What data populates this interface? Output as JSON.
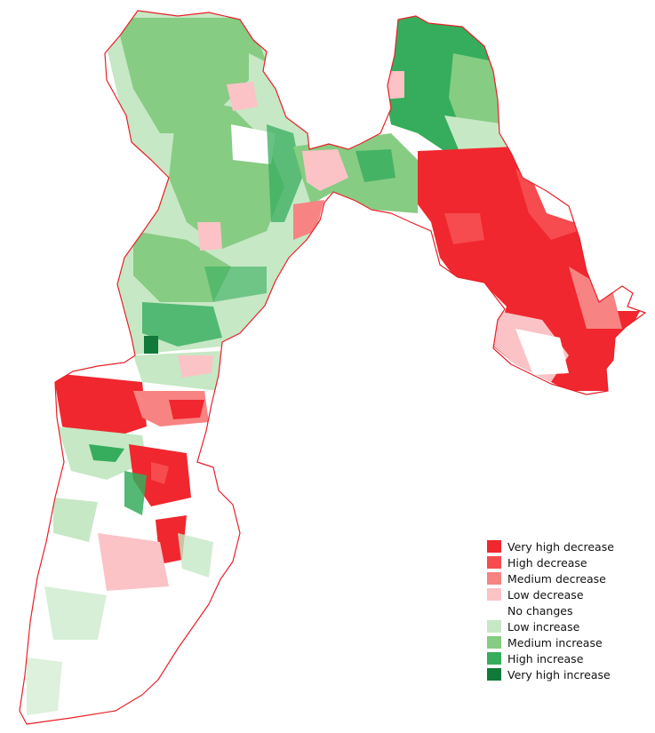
{
  "map": {
    "boundary_color": "#e8202a",
    "background_color": "#ffffff",
    "classes": [
      {
        "key": "very-high-decrease",
        "color": "#f0272e"
      },
      {
        "key": "high-decrease",
        "color": "#f64b4f"
      },
      {
        "key": "medium-decrease",
        "color": "#f78383"
      },
      {
        "key": "low-decrease",
        "color": "#fbc3c6"
      },
      {
        "key": "no-changes",
        "color": "#ffffff"
      },
      {
        "key": "low-increase",
        "color": "#c6e8c5"
      },
      {
        "key": "medium-increase",
        "color": "#86cc83"
      },
      {
        "key": "high-increase",
        "color": "#35ad5c"
      },
      {
        "key": "very-high-increase",
        "color": "#117a3a"
      }
    ]
  },
  "legend": {
    "items": [
      {
        "label": "Very high decrease",
        "color": "#f0272e"
      },
      {
        "label": "High decrease",
        "color": "#f64b4f"
      },
      {
        "label": "Medium decrease",
        "color": "#f78383"
      },
      {
        "label": "Low decrease",
        "color": "#fbc3c6"
      },
      {
        "label": "No changes",
        "color": "#ffffff"
      },
      {
        "label": "Low increase",
        "color": "#c6e8c5"
      },
      {
        "label": "Medium increase",
        "color": "#86cc83"
      },
      {
        "label": "High increase",
        "color": "#35ad5c"
      },
      {
        "label": "Very high increase",
        "color": "#117a3a"
      }
    ]
  }
}
